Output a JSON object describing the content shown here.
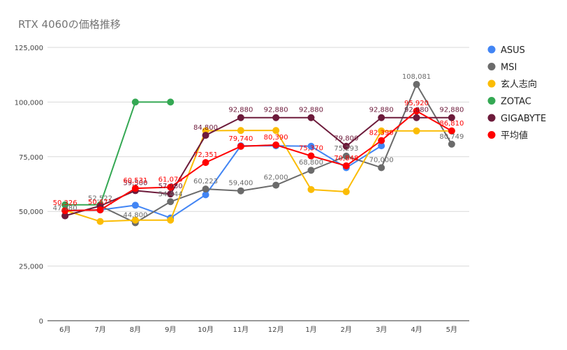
{
  "chart_data": {
    "type": "line",
    "title": "RTX 4060の価格推移",
    "xlabel": "",
    "ylabel": "",
    "categories": [
      "6月",
      "7月",
      "8月",
      "9月",
      "10月",
      "11月",
      "12月",
      "1月",
      "2月",
      "3月",
      "4月",
      "5月"
    ],
    "ylim": [
      0,
      125000
    ],
    "yticks": [
      0,
      25000,
      50000,
      75000,
      100000,
      125000
    ],
    "ytick_labels": [
      "0",
      "25,000",
      "50,000",
      "75,000",
      "100,000",
      "125,000"
    ],
    "grid": true,
    "legend_position": "right",
    "series": [
      {
        "name": "ASUS",
        "color": "#4285f4",
        "values": [
          50326,
          50671,
          52800,
          47000,
          57600,
          80000,
          80000,
          79800,
          70000,
          80000,
          null,
          null
        ],
        "labels": [
          null,
          null,
          null,
          null,
          null,
          null,
          null,
          null,
          null,
          null,
          null,
          null
        ]
      },
      {
        "name": "MSI",
        "color": "#6b6b6b",
        "values": [
          47980,
          52522,
          44800,
          54444,
          60223,
          59400,
          62000,
          68800,
          75293,
          70000,
          108081,
          80749
        ],
        "labels": [
          "47,980",
          "52,522",
          "44,800",
          "54,444",
          "60,223",
          "59,400",
          "62,000",
          "68,800",
          "75,293",
          "70,000",
          "108,081",
          "80,749"
        ]
      },
      {
        "name": "玄人志向",
        "color": "#fbbc04",
        "values": [
          50500,
          45400,
          46000,
          46000,
          86900,
          87000,
          87000,
          60000,
          59000,
          86800,
          86800,
          86800
        ],
        "labels": [
          null,
          null,
          null,
          null,
          null,
          null,
          null,
          null,
          null,
          null,
          null,
          null
        ]
      },
      {
        "name": "ZOTAC",
        "color": "#34a853",
        "values": [
          53000,
          53000,
          100000,
          100000,
          null,
          null,
          null,
          null,
          null,
          null,
          null,
          null
        ],
        "labels": [
          null,
          null,
          null,
          null,
          null,
          null,
          null,
          null,
          null,
          null,
          null,
          null
        ]
      },
      {
        "name": "GIGABYTE",
        "color": "#6d1b3b",
        "values": [
          48000,
          52500,
          59500,
          57980,
          84800,
          92880,
          92880,
          92880,
          79800,
          92880,
          92880,
          92880
        ],
        "labels": [
          null,
          null,
          "59,500",
          "57,980",
          "84,800",
          "92,880",
          "92,880",
          "92,880",
          "79,800",
          "92,880",
          "92,880",
          "92,880"
        ]
      },
      {
        "name": "平均値",
        "color": "#ff0000",
        "values": [
          50326,
          50671,
          60531,
          61076,
          72351,
          79740,
          80390,
          75370,
          70848,
          82390,
          95920,
          86810
        ],
        "labels": [
          "50,326",
          "50,671",
          "60,531",
          "61,076",
          "72,351",
          "79,740",
          "80,390",
          "75,370",
          "70,848",
          "82,390",
          "95,920",
          "86,810"
        ]
      }
    ]
  }
}
